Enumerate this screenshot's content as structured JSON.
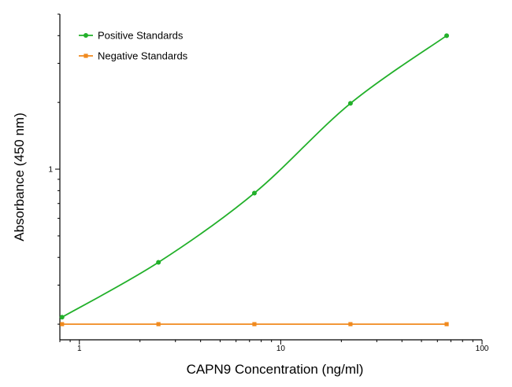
{
  "chart_data": {
    "type": "line",
    "title": "",
    "xlabel": "CAPN9 Concentration (ng/ml)",
    "ylabel": "Absorbance (450 nm)",
    "xscale": "log",
    "yscale": "log",
    "xlim": [
      0.8,
      100
    ],
    "ylim": [
      0.17,
      5
    ],
    "x_ticks": [
      1,
      10,
      100
    ],
    "x_tick_labels": [
      "1",
      "10",
      "100"
    ],
    "y_ticks": [
      1
    ],
    "y_tick_labels": [
      "1"
    ],
    "grid": false,
    "legend_position": "top-left",
    "series": [
      {
        "name": "Positive Standards",
        "color": "#22b02a",
        "marker": "circle",
        "x": [
          0.82,
          2.47,
          7.4,
          22.2,
          66.7
        ],
        "y": [
          0.215,
          0.38,
          0.78,
          1.98,
          4.0
        ]
      },
      {
        "name": "Negative Standards",
        "color": "#f08a1e",
        "marker": "square",
        "x": [
          0.82,
          2.47,
          7.4,
          22.2,
          66.7
        ],
        "y": [
          0.2,
          0.2,
          0.2,
          0.2,
          0.2
        ]
      }
    ]
  }
}
